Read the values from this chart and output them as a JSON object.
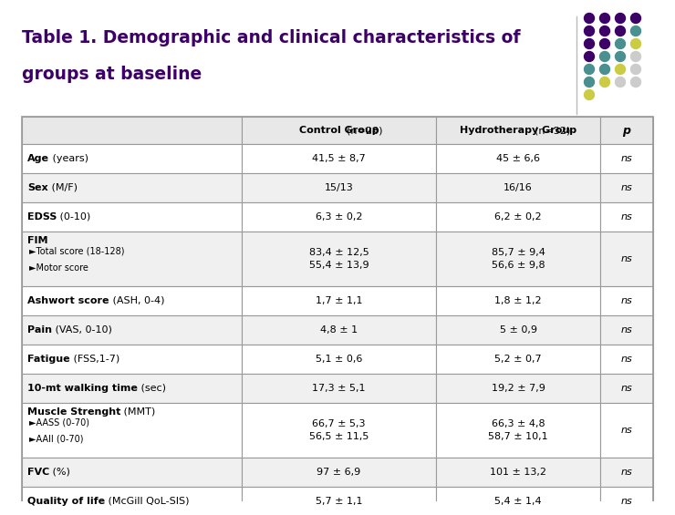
{
  "title_line1": "Table 1. Demographic and clinical characteristics of",
  "title_line2": "groups at baseline",
  "title_color": "#3D0066",
  "bg_color": "#ffffff",
  "border_color": "#999999",
  "dot_grid": [
    [
      "#3D0066",
      "#3D0066",
      "#3D0066",
      "#3D0066"
    ],
    [
      "#3D0066",
      "#3D0066",
      "#3D0066",
      "#4A9090"
    ],
    [
      "#3D0066",
      "#3D0066",
      "#4A9090",
      "#cccc44"
    ],
    [
      "#3D0066",
      "#4A9090",
      "#4A9090",
      "#cccccc"
    ],
    [
      "#4A9090",
      "#4A9090",
      "#cccc44",
      "#cccccc"
    ],
    [
      "#4A9090",
      "#cccc44",
      "#cccccc",
      "#cccccc"
    ],
    [
      "#cccc44",
      "#cccccc",
      "#cccccc",
      "#cccccc"
    ],
    [
      "#cccccc",
      "#cccccc",
      "#cccccc",
      "#cccccc"
    ]
  ],
  "rows": [
    {
      "label_bold": "Age",
      "label_normal": " (years)",
      "label_sub": [],
      "col1": "41,5 ± 8,7",
      "col2": "45 ± 6,6",
      "p": "ns",
      "tall": false
    },
    {
      "label_bold": "Sex",
      "label_normal": " (M/F)",
      "label_sub": [],
      "col1": "15/13",
      "col2": "16/16",
      "p": "ns",
      "tall": false
    },
    {
      "label_bold": "EDSS",
      "label_normal": " (0-10)",
      "label_sub": [],
      "col1": "6,3 ± 0,2",
      "col2": "6,2 ± 0,2",
      "p": "ns",
      "tall": false
    },
    {
      "label_bold": "FIM",
      "label_normal": "",
      "label_sub": [
        "►Total score (18-128)",
        "►Motor score"
      ],
      "col1": "83,4 ± 12,5\n55,4 ± 13,9",
      "col2": "85,7 ± 9,4\n56,6 ± 9,8",
      "p": "ns",
      "tall": true
    },
    {
      "label_bold": "Ashwort score",
      "label_normal": " (ASH, 0-4)",
      "label_sub": [],
      "col1": "1,7 ± 1,1",
      "col2": "1,8 ± 1,2",
      "p": "ns",
      "tall": false
    },
    {
      "label_bold": "Pain",
      "label_normal": " (VAS, 0-10)",
      "label_sub": [],
      "col1": "4,8 ± 1",
      "col2": "5 ± 0,9",
      "p": "ns",
      "tall": false
    },
    {
      "label_bold": "Fatigue",
      "label_normal": " (FSS,1-7)",
      "label_sub": [],
      "col1": "5,1 ± 0,6",
      "col2": "5,2 ± 0,7",
      "p": "ns",
      "tall": false
    },
    {
      "label_bold": "10-mt walking time",
      "label_normal": " (sec)",
      "label_sub": [],
      "col1": "17,3 ± 5,1",
      "col2": "19,2 ± 7,9",
      "p": "ns",
      "tall": false
    },
    {
      "label_bold": "Muscle Strenght",
      "label_normal": " (MMT)",
      "label_sub": [
        "►AASS (0-70)",
        "►AAII (0-70)"
      ],
      "col1": "66,7 ± 5,3\n56,5 ± 11,5",
      "col2": "66,3 ± 4,8\n58,7 ± 10,1",
      "p": "ns",
      "tall": true
    },
    {
      "label_bold": "FVC",
      "label_normal": " (%)",
      "label_sub": [],
      "col1": "97 ± 6,9",
      "col2": "101 ± 13,2",
      "p": "ns",
      "tall": false
    },
    {
      "label_bold": "Quality of life",
      "label_normal": " (McGill QoL-SIS)",
      "label_sub": [],
      "col1": "5,7 ± 1,1",
      "col2": "5,4 ± 1,4",
      "p": "ns",
      "tall": false
    }
  ]
}
